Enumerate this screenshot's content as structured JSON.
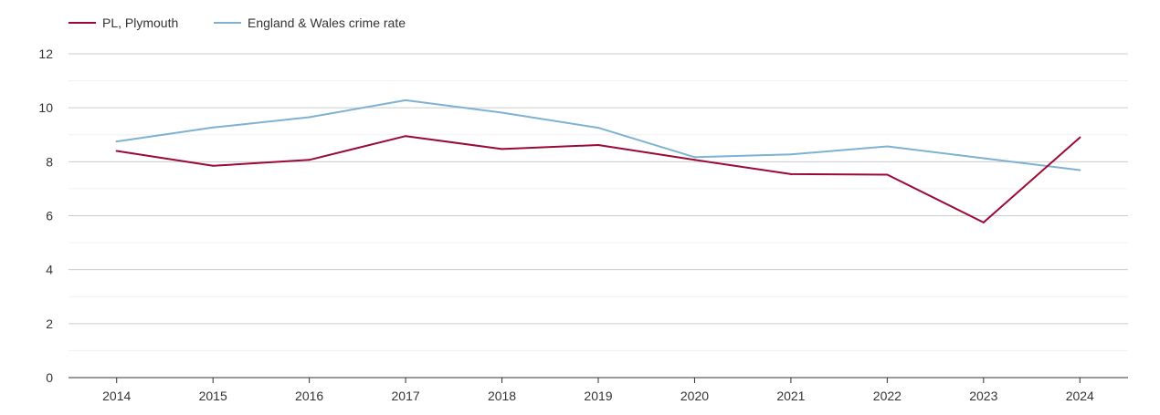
{
  "chart_data": {
    "type": "line",
    "title": "",
    "xlabel": "",
    "ylabel": "",
    "x": [
      "2014",
      "2015",
      "2016",
      "2017",
      "2018",
      "2019",
      "2020",
      "2021",
      "2022",
      "2023",
      "2024"
    ],
    "ylim": [
      0,
      12
    ],
    "yticks": [
      "0",
      "2",
      "4",
      "6",
      "8",
      "10",
      "12"
    ],
    "legend_position": "top-left",
    "series": [
      {
        "name": "PL, Plymouth",
        "color": "#9b0a35",
        "values": [
          8.4,
          7.85,
          8.07,
          8.95,
          8.47,
          8.62,
          8.07,
          7.54,
          7.52,
          5.75,
          8.9
        ]
      },
      {
        "name": "England & Wales crime rate",
        "color": "#7fb1d2",
        "values": [
          8.75,
          9.27,
          9.65,
          10.28,
          9.82,
          9.26,
          8.17,
          8.27,
          8.57,
          8.13,
          7.69
        ]
      }
    ],
    "grid": true
  }
}
